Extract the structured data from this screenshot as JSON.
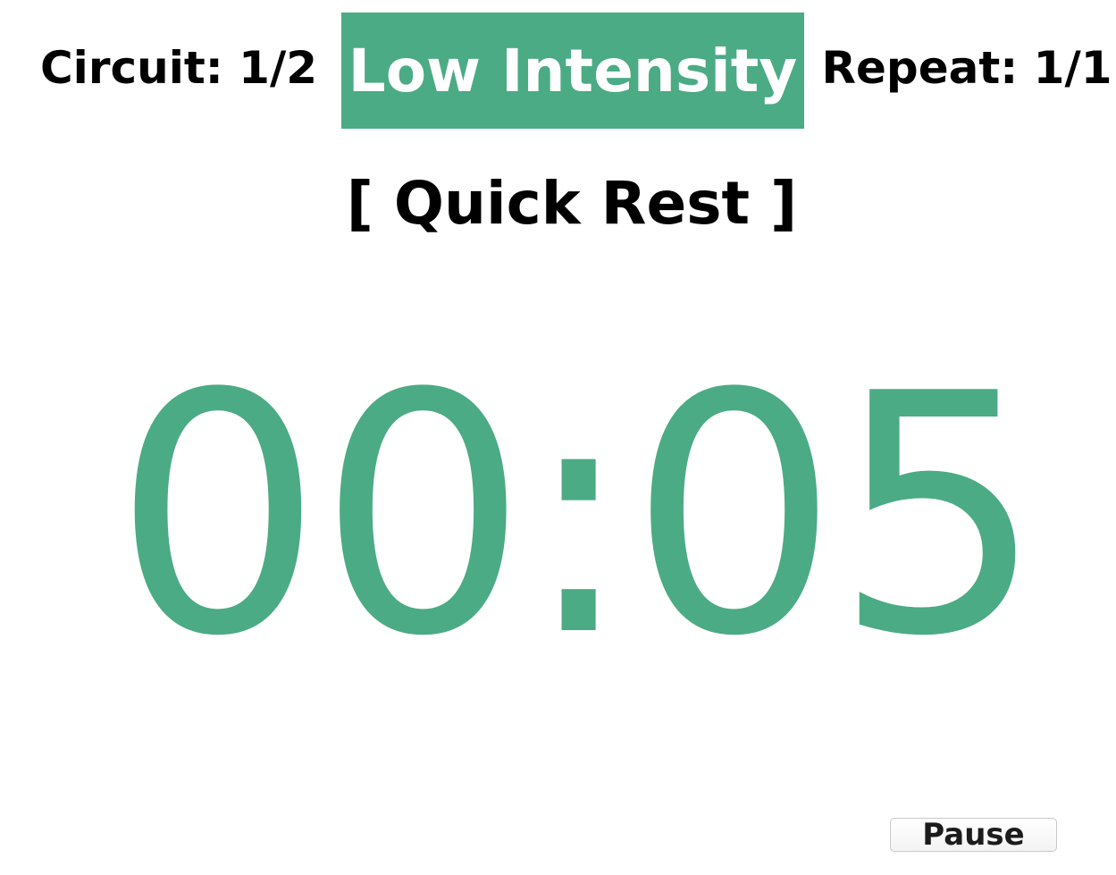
{
  "header": {
    "circuit_label": "Circuit: 1/2",
    "intensity_label": "Low Intensity",
    "repeat_label": "Repeat: 1/1"
  },
  "phase_label": "[ Quick Rest ]",
  "timer": {
    "display": "00:05"
  },
  "controls": {
    "pause_label": "Pause"
  },
  "colors": {
    "accent": "#4BAB85",
    "text": "#000000",
    "background": "#FFFFFF"
  }
}
